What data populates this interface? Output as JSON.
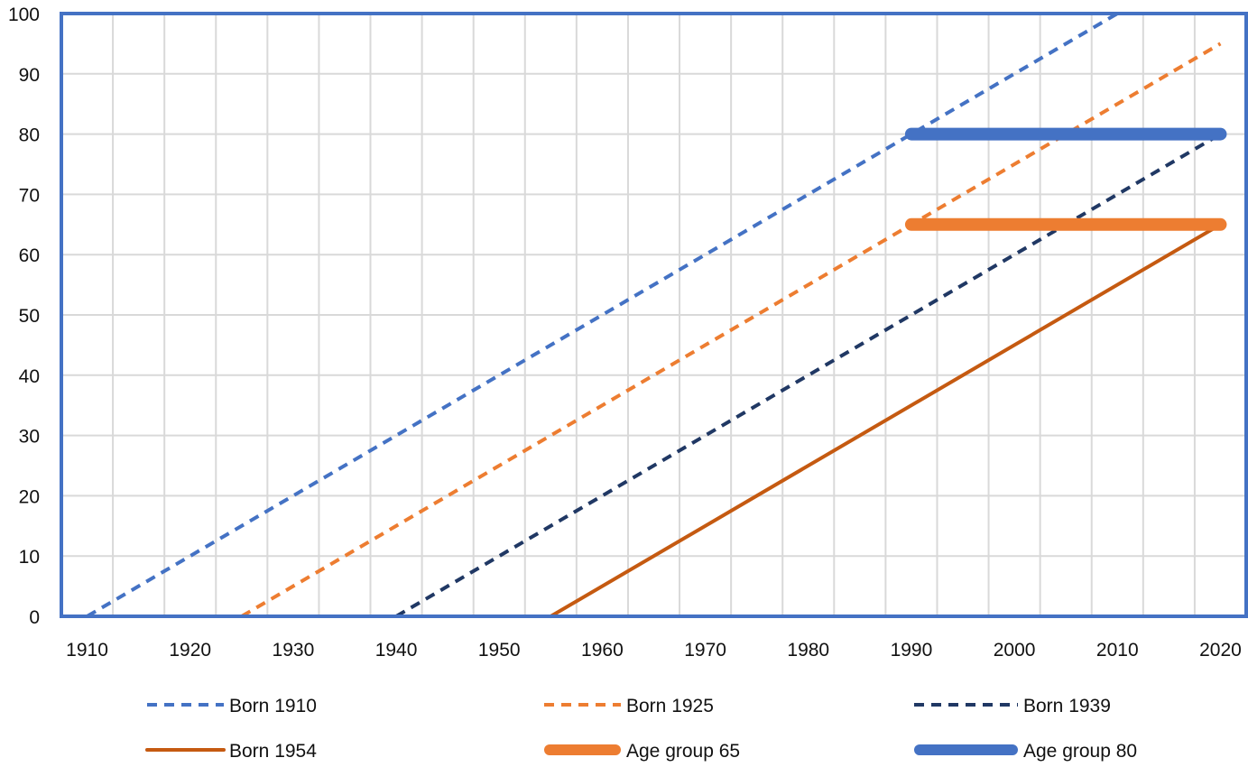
{
  "chart_data": {
    "type": "line",
    "title": "",
    "xlabel": "",
    "ylabel": "",
    "xlim": [
      1907.5,
      2022.5
    ],
    "ylim": [
      0,
      100
    ],
    "grid": true,
    "legend_position": "bottom",
    "x_ticks": [
      "1910",
      "1920",
      "1930",
      "1940",
      "1950",
      "1960",
      "1970",
      "1980",
      "1990",
      "2000",
      "2010",
      "2020"
    ],
    "y_ticks": [
      "0",
      "10",
      "20",
      "30",
      "40",
      "50",
      "60",
      "70",
      "80",
      "90",
      "100"
    ],
    "border_color": "#4472C4",
    "series": [
      {
        "name": "Born 1910",
        "color": "#4472C4",
        "style": "dashed",
        "width": "thin",
        "points": [
          [
            1910,
            0
          ],
          [
            2010,
            100
          ]
        ]
      },
      {
        "name": "Born 1925",
        "color": "#ED7D31",
        "style": "dashed",
        "width": "thin",
        "points": [
          [
            1925,
            0
          ],
          [
            2020,
            95
          ]
        ]
      },
      {
        "name": "Born 1939",
        "color": "#203864",
        "style": "dashed",
        "width": "thin",
        "points": [
          [
            1940,
            0
          ],
          [
            2020,
            80
          ]
        ]
      },
      {
        "name": "Born 1954",
        "color": "#C55A11",
        "style": "solid",
        "width": "thin",
        "points": [
          [
            1955,
            0
          ],
          [
            2020,
            65
          ]
        ]
      },
      {
        "name": "Age group 65",
        "color": "#ED7D31",
        "style": "solid",
        "width": "thick",
        "points": [
          [
            1990,
            65
          ],
          [
            2020,
            65
          ]
        ]
      },
      {
        "name": "Age group 80",
        "color": "#4472C4",
        "style": "solid",
        "width": "thick",
        "points": [
          [
            1990,
            80
          ],
          [
            2020,
            80
          ]
        ]
      }
    ]
  }
}
